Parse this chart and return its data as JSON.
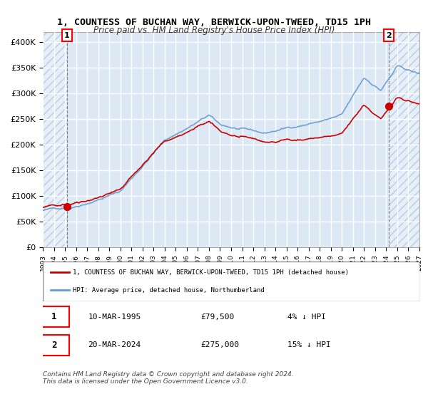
{
  "title": "1, COUNTESS OF BUCHAN WAY, BERWICK-UPON-TWEED, TD15 1PH",
  "subtitle": "Price paid vs. HM Land Registry's House Price Index (HPI)",
  "sale1_date": "10-MAR-1995",
  "sale1_price": 79500,
  "sale1_pct": "4%",
  "sale2_date": "20-MAR-2024",
  "sale2_price": 275000,
  "sale2_pct": "15%",
  "legend_label1": "1, COUNTESS OF BUCHAN WAY, BERWICK-UPON-TWEED, TD15 1PH (detached house)",
  "legend_label2": "HPI: Average price, detached house, Northumberland",
  "footer": "Contains HM Land Registry data © Crown copyright and database right 2024.\nThis data is licensed under the Open Government Licence v3.0.",
  "price_color": "#cc0000",
  "hpi_color": "#6699cc",
  "background_color": "#dce9f5",
  "plot_bg_color": "#dce9f5",
  "hatch_color": "#b0c4de",
  "grid_color": "#ffffff",
  "ylim": [
    0,
    420000
  ],
  "yticks": [
    0,
    50000,
    100000,
    150000,
    200000,
    250000,
    300000,
    350000,
    400000
  ],
  "x_start_year": 1993,
  "x_end_year": 2027,
  "sale1_year": 1995.19,
  "sale2_year": 2024.22
}
